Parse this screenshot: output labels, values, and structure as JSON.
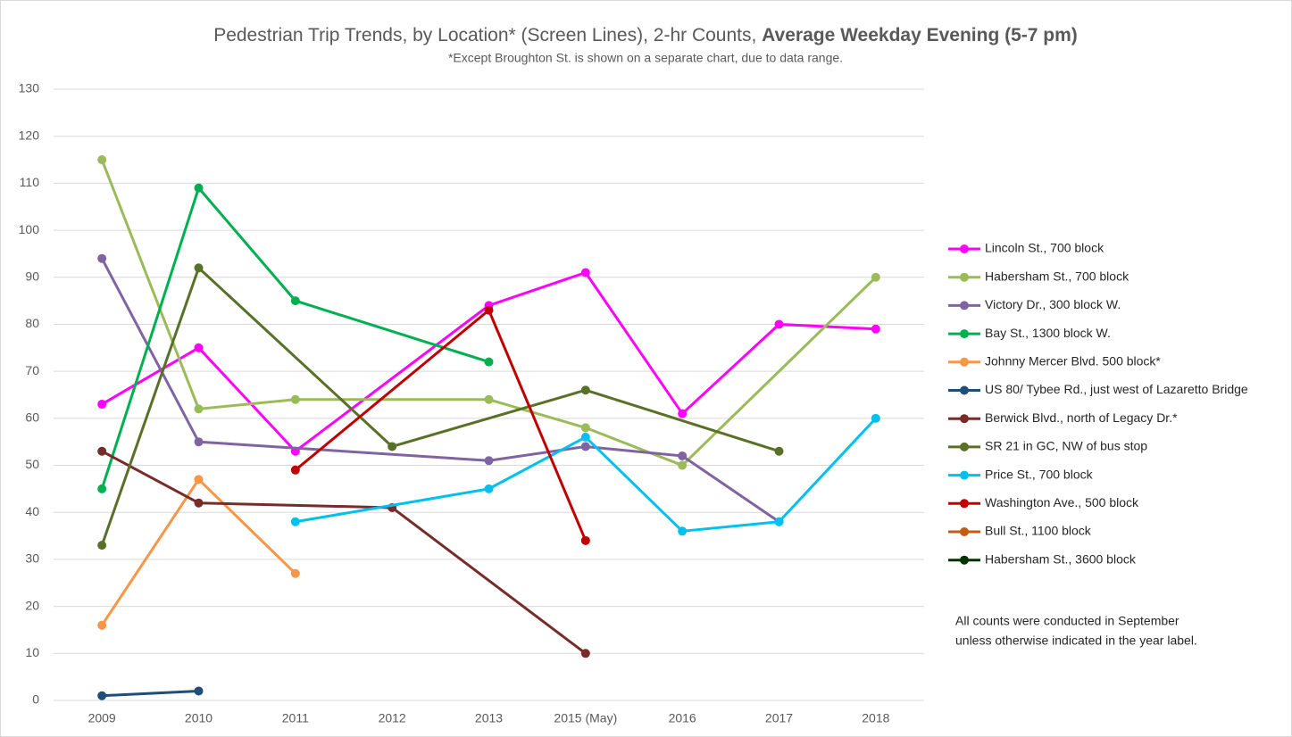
{
  "chart_data": {
    "type": "line",
    "title": "Pedestrian Trip Trends, by Location* (Screen Lines), 2-hr Counts, ",
    "title_emphasis": "Average Weekday Evening (5-7 pm)",
    "subtitle": "*Except Broughton St. is shown on a separate chart, due to data range.",
    "note": [
      "All counts were conducted in September",
      "unless otherwise indicated in the year label."
    ],
    "categories": [
      "2009",
      "2010",
      "2011",
      "2012",
      "2013",
      "2015 (May)",
      "2016",
      "2017",
      "2018"
    ],
    "ylim": [
      0,
      130
    ],
    "yticks": [
      0,
      10,
      20,
      30,
      40,
      50,
      60,
      70,
      80,
      90,
      100,
      110,
      120,
      130
    ],
    "grid": true,
    "connect_gaps": true,
    "legend": "right",
    "series": [
      {
        "name": "Lincoln St., 700 block",
        "color": "#ff00ff",
        "values": [
          63,
          75,
          53,
          null,
          84,
          91,
          61,
          80,
          79
        ]
      },
      {
        "name": "Habersham St., 700 block",
        "color": "#9bbb59",
        "values": [
          115,
          62,
          64,
          null,
          64,
          58,
          50,
          null,
          90
        ]
      },
      {
        "name": "Victory Dr., 300 block W.",
        "color": "#8064a2",
        "values": [
          94,
          55,
          null,
          null,
          51,
          54,
          52,
          38,
          null
        ]
      },
      {
        "name": "Bay St., 1300 block W.",
        "color": "#00b050",
        "values": [
          45,
          109,
          85,
          null,
          72,
          null,
          null,
          null,
          null
        ]
      },
      {
        "name": "Johnny Mercer Blvd. 500 block*",
        "color": "#f79646",
        "values": [
          16,
          47,
          27,
          null,
          null,
          null,
          null,
          null,
          null
        ]
      },
      {
        "name": "US 80/ Tybee Rd., just west of Lazaretto Bridge",
        "color": "#1f4e79",
        "values": [
          1,
          2,
          null,
          null,
          null,
          null,
          null,
          null,
          null
        ]
      },
      {
        "name": "Berwick Blvd., north of Legacy Dr.*",
        "color": "#772c2a",
        "values": [
          53,
          42,
          null,
          41,
          null,
          10,
          null,
          null,
          null
        ]
      },
      {
        "name": "SR 21 in GC, NW of bus stop",
        "color": "#5a7028",
        "values": [
          33,
          92,
          null,
          54,
          null,
          66,
          null,
          53,
          null
        ]
      },
      {
        "name": "Price St., 700 block",
        "color": "#00c0f0",
        "values": [
          null,
          null,
          38,
          null,
          45,
          56,
          36,
          38,
          60
        ]
      },
      {
        "name": "Washington Ave., 500 block",
        "color": "#c00000",
        "values": [
          null,
          null,
          49,
          null,
          83,
          34,
          null,
          null,
          null
        ]
      },
      {
        "name": "Bull St., 1100 block",
        "color": "#c55a11",
        "values": [
          null,
          null,
          null,
          null,
          null,
          null,
          null,
          null,
          null
        ]
      },
      {
        "name": "Habersham St., 3600 block",
        "color": "#003300",
        "values": [
          null,
          null,
          null,
          null,
          null,
          null,
          null,
          null,
          null
        ]
      }
    ]
  }
}
